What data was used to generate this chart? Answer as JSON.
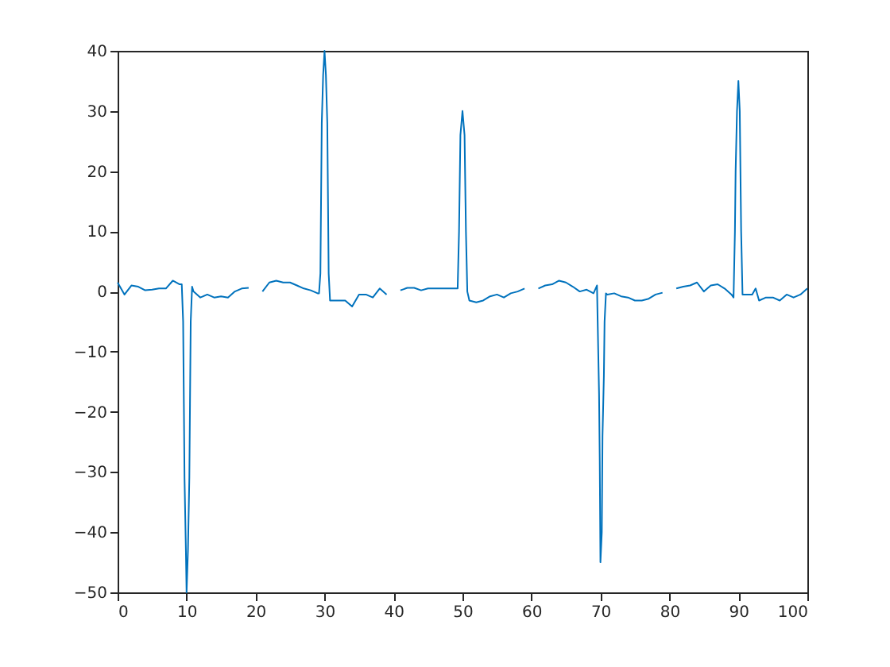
{
  "chart_data": {
    "type": "line",
    "xlim": [
      0,
      100
    ],
    "xticks": [
      0,
      10,
      20,
      30,
      40,
      50,
      60,
      70,
      80,
      90,
      100
    ],
    "ylim": [
      -50,
      40
    ],
    "yticks": [
      -50,
      -40,
      -30,
      -20,
      -10,
      0,
      10,
      20,
      30,
      40
    ],
    "grid": false,
    "legend": false,
    "series": [
      {
        "color": "#0072bd",
        "line_style": "solid",
        "x": [
          0,
          1,
          2,
          3,
          4,
          5,
          6,
          7,
          8,
          9,
          9.3,
          9.5,
          9.7,
          9.9,
          10,
          10.2,
          10.4,
          10.6,
          10.8,
          11,
          12,
          13,
          14,
          15,
          16,
          17,
          18,
          19,
          20,
          21,
          22,
          23,
          24,
          25,
          26,
          27,
          28,
          29,
          29.2,
          29.4,
          29.6,
          29.8,
          30,
          30.2,
          30.4,
          30.6,
          30.8,
          31,
          32,
          33,
          34,
          35,
          36,
          37,
          38,
          39,
          40,
          41,
          42,
          43,
          44,
          45,
          46,
          47,
          48,
          49,
          49.3,
          49.5,
          49.7,
          50,
          50.3,
          50.5,
          50.7,
          51,
          52,
          53,
          54,
          55,
          56,
          57,
          58,
          59,
          60,
          61,
          62,
          63,
          64,
          65,
          66,
          67,
          68,
          69,
          69.5,
          69.6,
          69.8,
          69.9,
          70,
          70.2,
          70.3,
          70.5,
          70.6,
          70.8,
          71,
          72,
          73,
          74,
          75,
          76,
          77,
          78,
          79,
          80,
          81,
          82,
          83,
          84,
          85,
          86,
          87,
          88,
          89,
          89.3,
          89.5,
          89.6,
          89.8,
          90,
          90.2,
          90.4,
          90.6,
          91,
          92,
          92.5,
          93,
          94,
          95,
          96,
          97,
          98,
          99,
          100
        ],
        "values": [
          1.5,
          -0.5,
          1,
          0.8,
          0.2,
          0.3,
          0.5,
          0.5,
          1.8,
          1.2,
          1.2,
          -5,
          -31,
          -43,
          -50,
          -43,
          -31,
          -5,
          0.8,
          0,
          -1,
          -0.5,
          -1,
          -0.8,
          -1,
          0,
          0.5,
          0.6,
          null,
          0,
          1.5,
          1.8,
          1.5,
          1.5,
          1,
          0.5,
          0.2,
          -0.3,
          -0.3,
          3,
          28,
          36,
          40,
          36,
          28,
          3,
          -1.5,
          -1.5,
          -1.5,
          -1.5,
          -2.5,
          -0.5,
          -0.5,
          -1,
          0.5,
          -0.5,
          null,
          0.2,
          0.6,
          0.6,
          0.2,
          0.5,
          0.5,
          0.5,
          0.5,
          0.5,
          0.5,
          10,
          26,
          30,
          26,
          10,
          0,
          -1.5,
          -1.8,
          -1.5,
          -0.8,
          -0.5,
          -1,
          -0.3,
          0,
          0.5,
          null,
          0.5,
          1,
          1.2,
          1.8,
          1.5,
          0.8,
          0,
          0.3,
          -0.3,
          1,
          -5,
          -17,
          -28,
          -45,
          -40,
          -24,
          -14,
          -5,
          -0.3,
          -0.5,
          -0.3,
          -0.8,
          -1,
          -1.5,
          -1.5,
          -1.2,
          -0.5,
          -0.2,
          null,
          0.5,
          0.8,
          1,
          1.5,
          0,
          1,
          1.2,
          0.5,
          -0.5,
          -1,
          10,
          20,
          30,
          35,
          30,
          10,
          -0.5,
          -0.5,
          -0.5,
          0.5,
          -1.5,
          -1,
          -1,
          -1.5,
          -0.5,
          -1,
          -0.5,
          0.5
        ]
      }
    ]
  }
}
